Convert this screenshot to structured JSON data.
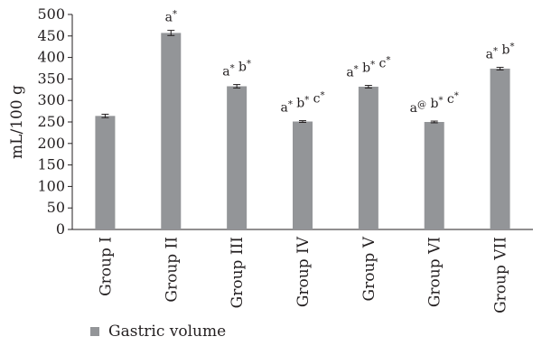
{
  "chart_data": {
    "type": "bar",
    "title": "",
    "ylabel": "mL/100 g",
    "xlabel": "",
    "ylim": [
      0,
      500
    ],
    "yticks": [
      0,
      50,
      100,
      150,
      200,
      250,
      300,
      350,
      400,
      450,
      500
    ],
    "categories": [
      "Group I",
      "Group II",
      "Group III",
      "Group IV",
      "Group V",
      "Group VI",
      "Group VII"
    ],
    "series": [
      {
        "name": "Gastric volume",
        "color": "#939598",
        "values": [
          264,
          457,
          333,
          251,
          332,
          250,
          374
        ],
        "errors": [
          4,
          6,
          4,
          2,
          3,
          2,
          3
        ]
      }
    ],
    "annotations": [
      [],
      [
        [
          "a",
          "*"
        ]
      ],
      [
        [
          "a",
          "*"
        ],
        [
          "b",
          "*"
        ]
      ],
      [
        [
          "a",
          "*"
        ],
        [
          "b",
          "*"
        ],
        [
          "c",
          "*"
        ]
      ],
      [
        [
          "a",
          "*"
        ],
        [
          "b",
          "*"
        ],
        [
          "c",
          "*"
        ]
      ],
      [
        [
          "a",
          "@"
        ],
        [
          "b",
          "*"
        ],
        [
          "c",
          "*"
        ]
      ],
      [
        [
          "a",
          "*"
        ],
        [
          "b",
          "*"
        ]
      ]
    ],
    "grid": false,
    "legend_position": "bottom-left"
  }
}
